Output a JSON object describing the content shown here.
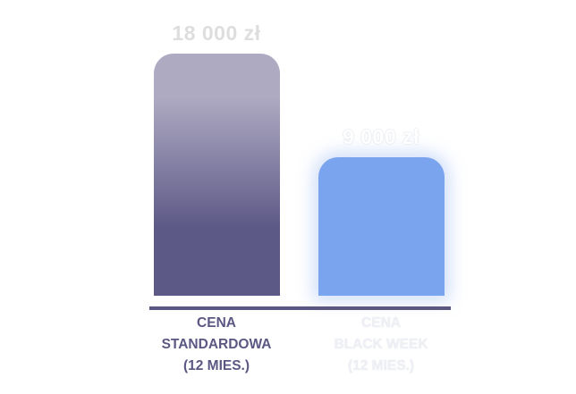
{
  "chart_data": {
    "type": "bar",
    "categories": [
      [
        "CENA",
        "STANDARDOWA",
        "(12 MIES.)"
      ],
      [
        "CENA",
        "BLACK WEEK",
        "(12 MIES.)"
      ]
    ],
    "values": [
      18000,
      9000
    ],
    "data_labels": [
      "18 000 zł",
      "9 000 zł"
    ],
    "title": "",
    "xlabel": "",
    "ylabel": "",
    "ylim": [
      0,
      18000
    ],
    "grid": false,
    "colors": {
      "standard_top": "#aeaac2",
      "standard_bottom": "#5d5987",
      "black_week": "#7ba4ee",
      "axis": "#5b5783",
      "standard_label": "#5b5783",
      "black_week_label": "#eef0f5",
      "value_label": "#dedede"
    }
  }
}
